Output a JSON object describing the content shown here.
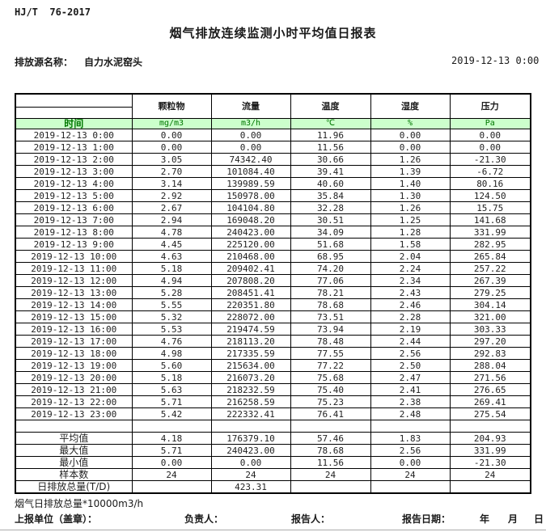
{
  "page": {
    "standard_no": "HJ/T  76-2017",
    "title": "烟气排放连续监测小时平均值日报表",
    "source_label": "排放源名称：",
    "source_name": "自力水泥窑头",
    "report_datetime": "2019-12-13 0:00"
  },
  "table": {
    "time_header": "时间",
    "columns": [
      {
        "name": "颗粒物",
        "unit": "mg/m3"
      },
      {
        "name": "流量",
        "unit": "m3/h"
      },
      {
        "name": "温度",
        "unit": "℃"
      },
      {
        "name": "湿度",
        "unit": "%"
      },
      {
        "name": "压力",
        "unit": "Pa"
      }
    ],
    "rows": [
      [
        "2019-12-13 0:00",
        "0.00",
        "0.00",
        "11.96",
        "0.00",
        "0.00"
      ],
      [
        "2019-12-13 1:00",
        "0.00",
        "0.00",
        "11.56",
        "0.00",
        "0.00"
      ],
      [
        "2019-12-13 2:00",
        "3.05",
        "74342.40",
        "30.66",
        "1.26",
        "-21.30"
      ],
      [
        "2019-12-13 3:00",
        "2.70",
        "101084.40",
        "39.41",
        "1.39",
        "-6.72"
      ],
      [
        "2019-12-13 4:00",
        "3.14",
        "139989.59",
        "40.60",
        "1.40",
        "80.16"
      ],
      [
        "2019-12-13 5:00",
        "2.92",
        "150978.00",
        "35.84",
        "1.30",
        "124.50"
      ],
      [
        "2019-12-13 6:00",
        "2.67",
        "104104.80",
        "32.28",
        "1.26",
        "15.75"
      ],
      [
        "2019-12-13 7:00",
        "2.94",
        "169048.20",
        "30.51",
        "1.25",
        "141.68"
      ],
      [
        "2019-12-13 8:00",
        "4.78",
        "240423.00",
        "34.09",
        "1.28",
        "331.99"
      ],
      [
        "2019-12-13 9:00",
        "4.45",
        "225120.00",
        "51.68",
        "1.58",
        "282.95"
      ],
      [
        "2019-12-13 10:00",
        "4.63",
        "210468.00",
        "68.95",
        "2.04",
        "265.84"
      ],
      [
        "2019-12-13 11:00",
        "5.18",
        "209402.41",
        "74.20",
        "2.24",
        "257.22"
      ],
      [
        "2019-12-13 12:00",
        "4.94",
        "207808.20",
        "77.06",
        "2.34",
        "267.39"
      ],
      [
        "2019-12-13 13:00",
        "5.28",
        "208451.41",
        "78.21",
        "2.43",
        "279.25"
      ],
      [
        "2019-12-13 14:00",
        "5.55",
        "220351.80",
        "78.68",
        "2.46",
        "304.14"
      ],
      [
        "2019-12-13 15:00",
        "5.32",
        "228072.00",
        "73.51",
        "2.28",
        "321.00"
      ],
      [
        "2019-12-13 16:00",
        "5.53",
        "219474.59",
        "73.94",
        "2.19",
        "303.33"
      ],
      [
        "2019-12-13 17:00",
        "4.76",
        "218113.20",
        "78.48",
        "2.44",
        "297.20"
      ],
      [
        "2019-12-13 18:00",
        "4.98",
        "217335.59",
        "77.55",
        "2.56",
        "292.83"
      ],
      [
        "2019-12-13 19:00",
        "5.60",
        "215634.00",
        "77.22",
        "2.50",
        "288.04"
      ],
      [
        "2019-12-13 20:00",
        "5.18",
        "216073.20",
        "75.68",
        "2.47",
        "271.56"
      ],
      [
        "2019-12-13 21:00",
        "5.63",
        "218232.59",
        "75.40",
        "2.41",
        "276.65"
      ],
      [
        "2019-12-13 22:00",
        "5.71",
        "216258.59",
        "75.23",
        "2.38",
        "269.41"
      ],
      [
        "2019-12-13 23:00",
        "5.42",
        "222332.41",
        "76.41",
        "2.48",
        "275.54"
      ]
    ],
    "summary": [
      [
        "平均值",
        "4.18",
        "176379.10",
        "57.46",
        "1.83",
        "204.93"
      ],
      [
        "最大值",
        "5.71",
        "240423.00",
        "78.68",
        "2.56",
        "331.99"
      ],
      [
        "最小值",
        "0.00",
        "0.00",
        "11.56",
        "0.00",
        "-21.30"
      ],
      [
        "样本数",
        "24",
        "24",
        "24",
        "24",
        "24"
      ],
      [
        "日排放总量(T/D)",
        "",
        "423.31",
        "",
        "",
        ""
      ]
    ]
  },
  "footer": {
    "note": "烟气日排放总量*10000m3/h",
    "report_unit_label": "上报单位（盖章）：",
    "responsible_label": "负责人：",
    "reporter_label": "报告人：",
    "report_date_label": "报告日期：",
    "year_label": "年",
    "month_label": "月",
    "day_label": "日"
  },
  "colors": {
    "header_row_bg": "#ccffcc",
    "header_row_text": "#007700",
    "border": "#000000"
  }
}
